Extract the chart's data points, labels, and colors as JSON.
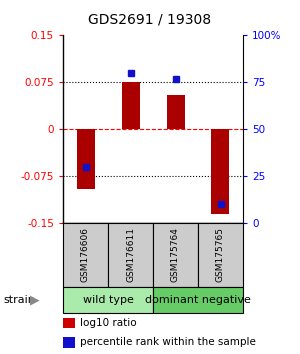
{
  "title": "GDS2691 / 19308",
  "samples": [
    "GSM176606",
    "GSM176611",
    "GSM175764",
    "GSM175765"
  ],
  "log10_ratio": [
    -0.095,
    0.075,
    0.055,
    -0.135
  ],
  "percentile_rank": [
    30,
    80,
    77,
    10
  ],
  "groups": [
    {
      "label": "wild type",
      "indices": [
        0,
        1
      ],
      "color": "#aaeaaa"
    },
    {
      "label": "dominant negative",
      "indices": [
        2,
        3
      ],
      "color": "#66cc66"
    }
  ],
  "group_label": "strain",
  "ylim_left": [
    -0.15,
    0.15
  ],
  "ylim_right": [
    0,
    100
  ],
  "yticks_left": [
    -0.15,
    -0.075,
    0,
    0.075,
    0.15
  ],
  "ytick_labels_left": [
    "-0.15",
    "-0.075",
    "0",
    "0.075",
    "0.15"
  ],
  "yticks_right": [
    0,
    25,
    50,
    75,
    100
  ],
  "ytick_labels_right": [
    "0",
    "25",
    "50",
    "75",
    "100%"
  ],
  "hlines_dotted": [
    -0.075,
    0.075
  ],
  "hline_red_dashed": 0.0,
  "bar_color": "#aa0000",
  "dot_color": "#1111cc",
  "legend_items": [
    {
      "color": "#cc0000",
      "marker": "s",
      "label": "log10 ratio"
    },
    {
      "color": "#1111cc",
      "marker": "s",
      "label": "percentile rank within the sample"
    }
  ],
  "background_color": "#ffffff",
  "title_fontsize": 10,
  "tick_fontsize": 7.5,
  "sample_fontsize": 6.5,
  "group_fontsize": 8,
  "legend_fontsize": 7.5
}
